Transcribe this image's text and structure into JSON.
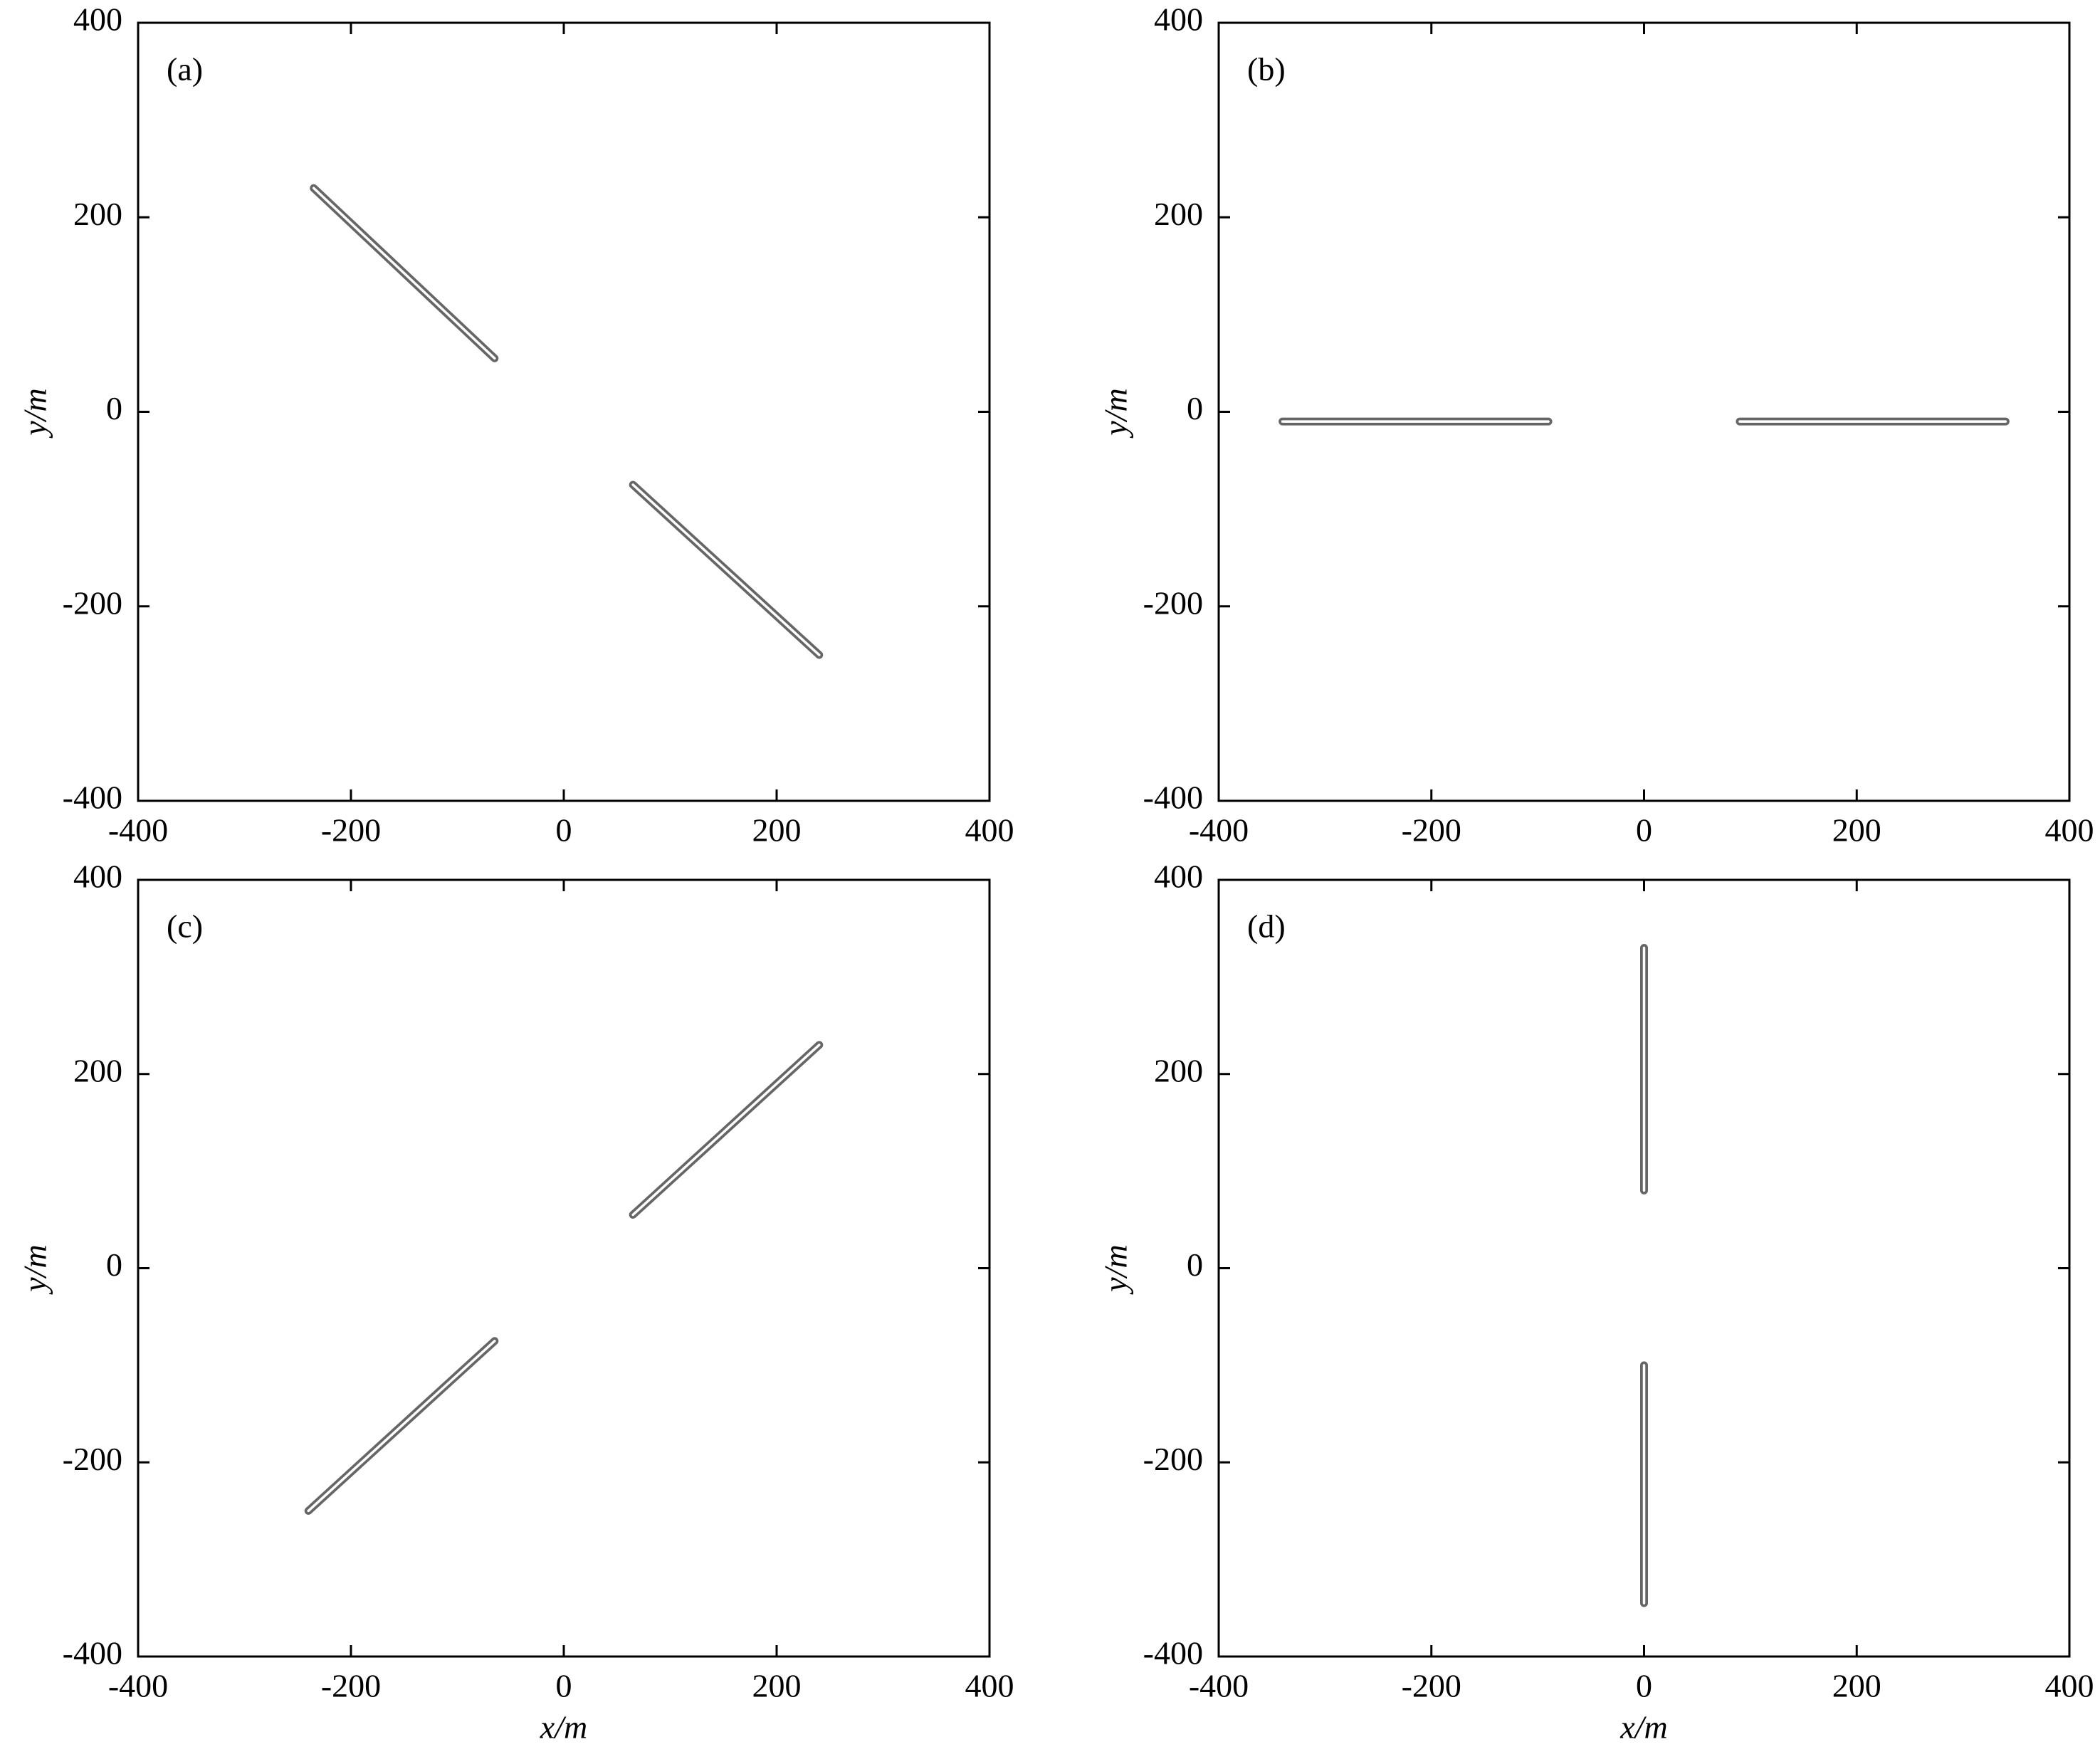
{
  "chart_data": [
    {
      "type": "line",
      "panel_label": "(a)",
      "ylabel": "y/m",
      "color": "#555555",
      "xlim": [
        -400,
        400
      ],
      "ylim": [
        -400,
        400
      ],
      "xticks": [
        -400,
        -200,
        0,
        200,
        400
      ],
      "yticks": [
        -400,
        -200,
        0,
        200,
        400
      ],
      "series": [
        {
          "x": [
            -235,
            -65
          ],
          "values": [
            230,
            55
          ]
        },
        {
          "x": [
            65,
            240
          ],
          "values": [
            -75,
            -250
          ]
        }
      ]
    },
    {
      "type": "line",
      "panel_label": "(b)",
      "ylabel": "y/m",
      "color": "#555555",
      "xlim": [
        -400,
        400
      ],
      "ylim": [
        -400,
        400
      ],
      "xticks": [
        -400,
        -200,
        0,
        200,
        400
      ],
      "yticks": [
        -400,
        -200,
        0,
        200,
        400
      ],
      "series": [
        {
          "x": [
            -340,
            -90
          ],
          "values": [
            -10,
            -10
          ]
        },
        {
          "x": [
            90,
            340
          ],
          "values": [
            -10,
            -10
          ]
        }
      ]
    },
    {
      "type": "line",
      "panel_label": "(c)",
      "xlabel": "x/m",
      "ylabel": "y/m",
      "color": "#555555",
      "xlim": [
        -400,
        400
      ],
      "ylim": [
        -400,
        400
      ],
      "xticks": [
        -400,
        -200,
        0,
        200,
        400
      ],
      "yticks": [
        -400,
        -200,
        0,
        200,
        400
      ],
      "series": [
        {
          "x": [
            -240,
            -65
          ],
          "values": [
            -250,
            -75
          ]
        },
        {
          "x": [
            65,
            240
          ],
          "values": [
            55,
            230
          ]
        }
      ]
    },
    {
      "type": "line",
      "panel_label": "(d)",
      "xlabel": "x/m",
      "ylabel": "y/m",
      "color": "#555555",
      "xlim": [
        -400,
        400
      ],
      "ylim": [
        -400,
        400
      ],
      "xticks": [
        -400,
        -200,
        0,
        200,
        400
      ],
      "yticks": [
        -400,
        -200,
        0,
        200,
        400
      ],
      "series": [
        {
          "x": [
            0,
            0
          ],
          "values": [
            330,
            80
          ]
        },
        {
          "x": [
            0,
            0
          ],
          "values": [
            -100,
            -345
          ]
        }
      ]
    }
  ]
}
